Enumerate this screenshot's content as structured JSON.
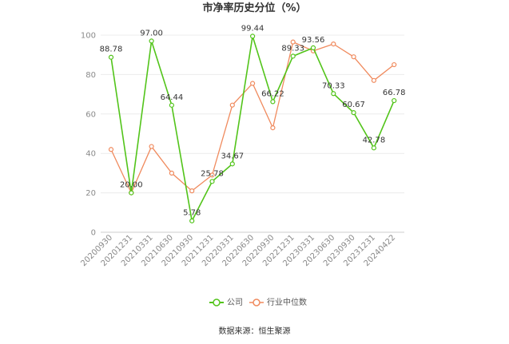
{
  "chart_data": {
    "type": "line",
    "title": "市净率历史分位（%）",
    "categories": [
      "20200930",
      "20201231",
      "20210331",
      "20210630",
      "20210930",
      "20211231",
      "20220331",
      "20220630",
      "20220930",
      "20221231",
      "20230331",
      "20230630",
      "20230930",
      "20231231",
      "20240422"
    ],
    "series": [
      {
        "name": "公司",
        "color": "#52c41a",
        "values": [
          88.78,
          20.0,
          97.0,
          64.44,
          5.78,
          25.78,
          34.67,
          99.44,
          66.22,
          89.33,
          93.56,
          70.33,
          60.67,
          42.78,
          66.78
        ],
        "data_labels": [
          "88.78",
          "20.00",
          "97.00",
          "64.44",
          "5.78",
          "25.78",
          "34.67",
          "99.44",
          "66.22",
          "89.33",
          "93.56",
          "70.33",
          "60.67",
          "42.78",
          "66.78"
        ]
      },
      {
        "name": "行业中位数",
        "color": "#f08a5d",
        "values": [
          42,
          20,
          43.5,
          30,
          21,
          29,
          64.5,
          75.5,
          53,
          96.5,
          92,
          95.5,
          89,
          77,
          85
        ]
      }
    ],
    "ylim": [
      0,
      100
    ],
    "yticks": [
      0,
      20,
      40,
      60,
      80,
      100
    ],
    "grid": true,
    "legend_position": "bottom"
  },
  "footer": {
    "source": "数据来源：恒生聚源"
  }
}
